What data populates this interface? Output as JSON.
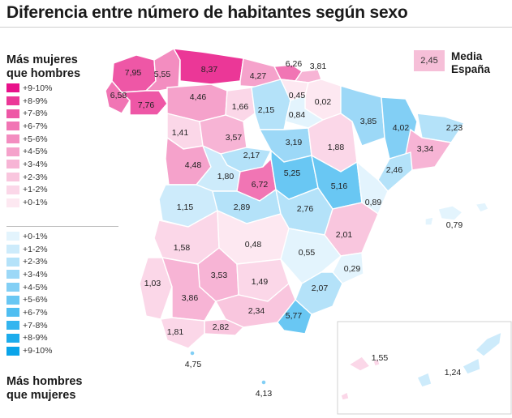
{
  "title": "Diferencia entre número de habitantes según sexo",
  "legend_women": {
    "heading_line1": "Más mujeres",
    "heading_line2": "que hombres",
    "items": [
      {
        "label": "+9-10%",
        "color": "#e8118a"
      },
      {
        "label": "+8-9%",
        "color": "#eb3797"
      },
      {
        "label": "+7-8%",
        "color": "#ee57a6"
      },
      {
        "label": "+6-7%",
        "color": "#f175b4"
      },
      {
        "label": "+5-6%",
        "color": "#f38dc0"
      },
      {
        "label": "+4-5%",
        "color": "#f5a2cb"
      },
      {
        "label": "+3-4%",
        "color": "#f7b4d5"
      },
      {
        "label": "+2-3%",
        "color": "#f9c6de"
      },
      {
        "label": "+1-2%",
        "color": "#fbd7e8"
      },
      {
        "label": "+0-1%",
        "color": "#fde8f1"
      }
    ]
  },
  "legend_men": {
    "heading_line1": "Más hombres",
    "heading_line2": "que mujeres",
    "items": [
      {
        "label": "+0-1%",
        "color": "#e3f4fd"
      },
      {
        "label": "+1-2%",
        "color": "#cdebfb"
      },
      {
        "label": "+2-3%",
        "color": "#b4e2f9"
      },
      {
        "label": "+3-4%",
        "color": "#9cd8f7"
      },
      {
        "label": "+4-5%",
        "color": "#82cff5"
      },
      {
        "label": "+5-6%",
        "color": "#69c7f3"
      },
      {
        "label": "+6-7%",
        "color": "#4fbef1"
      },
      {
        "label": "+7-8%",
        "color": "#33b5ef"
      },
      {
        "label": "+8-9%",
        "color": "#1dacec"
      },
      {
        "label": "+9-10%",
        "color": "#0aa4e9"
      }
    ]
  },
  "average": {
    "value": "2,45",
    "label_line1": "Media",
    "label_line2": "España",
    "color": "#f6bfd8"
  },
  "provinces": [
    {
      "name": "A Coruña",
      "value": "7,95",
      "sign": "women"
    },
    {
      "name": "Lugo",
      "value": "5,55",
      "sign": "women"
    },
    {
      "name": "Asturias",
      "value": "8,37",
      "sign": "women"
    },
    {
      "name": "Cantabria",
      "value": "4,27",
      "sign": "women"
    },
    {
      "name": "Bizkaia",
      "value": "6,26",
      "sign": "women"
    },
    {
      "name": "Gipuzkoa",
      "value": "3,81",
      "sign": "women"
    },
    {
      "name": "Pontevedra",
      "value": "6,58",
      "sign": "women"
    },
    {
      "name": "Ourense",
      "value": "7,76",
      "sign": "women"
    },
    {
      "name": "León",
      "value": "4,46",
      "sign": "women"
    },
    {
      "name": "Palencia",
      "value": "1,66",
      "sign": "women"
    },
    {
      "name": "Burgos",
      "value": "2,15",
      "sign": "men"
    },
    {
      "name": "Álava",
      "value": "0,45",
      "sign": "women"
    },
    {
      "name": "Navarra",
      "value": "0,02",
      "sign": "women"
    },
    {
      "name": "La Rioja",
      "value": "0,84",
      "sign": "men"
    },
    {
      "name": "Zamora",
      "value": "1,41",
      "sign": "women"
    },
    {
      "name": "Valladolid",
      "value": "3,57",
      "sign": "women"
    },
    {
      "name": "Soria",
      "value": "3,19",
      "sign": "men"
    },
    {
      "name": "Zaragoza",
      "value": "1,88",
      "sign": "women"
    },
    {
      "name": "Huesca",
      "value": "3,85",
      "sign": "men"
    },
    {
      "name": "Lleida",
      "value": "4,02",
      "sign": "men"
    },
    {
      "name": "Girona",
      "value": "2,23",
      "sign": "men"
    },
    {
      "name": "Barcelona",
      "value": "3,34",
      "sign": "women"
    },
    {
      "name": "Tarragona",
      "value": "2,46",
      "sign": "men"
    },
    {
      "name": "Segovia",
      "value": "2,17",
      "sign": "men"
    },
    {
      "name": "Salamanca",
      "value": "4,48",
      "sign": "women"
    },
    {
      "name": "Ávila",
      "value": "1,80",
      "sign": "men"
    },
    {
      "name": "Madrid",
      "value": "6,72",
      "sign": "women"
    },
    {
      "name": "Guadalajara",
      "value": "5,25",
      "sign": "men"
    },
    {
      "name": "Teruel",
      "value": "5,16",
      "sign": "men"
    },
    {
      "name": "Castellón",
      "value": "0,89",
      "sign": "men"
    },
    {
      "name": "Cáceres",
      "value": "1,15",
      "sign": "men"
    },
    {
      "name": "Toledo",
      "value": "2,89",
      "sign": "men"
    },
    {
      "name": "Cuenca",
      "value": "2,76",
      "sign": "men"
    },
    {
      "name": "Valencia",
      "value": "2,01",
      "sign": "women"
    },
    {
      "name": "Illes Balears",
      "value": "0,79",
      "sign": "men"
    },
    {
      "name": "Badajoz",
      "value": "1,58",
      "sign": "women"
    },
    {
      "name": "Ciudad Real",
      "value": "0,48",
      "sign": "women"
    },
    {
      "name": "Albacete",
      "value": "0,55",
      "sign": "men"
    },
    {
      "name": "Alicante",
      "value": "0,29",
      "sign": "men"
    },
    {
      "name": "Huelva",
      "value": "1,03",
      "sign": "women"
    },
    {
      "name": "Córdoba",
      "value": "3,53",
      "sign": "women"
    },
    {
      "name": "Jaén",
      "value": "1,49",
      "sign": "women"
    },
    {
      "name": "Murcia",
      "value": "2,07",
      "sign": "men"
    },
    {
      "name": "Sevilla",
      "value": "3,86",
      "sign": "women"
    },
    {
      "name": "Granada",
      "value": "2,34",
      "sign": "women"
    },
    {
      "name": "Almería",
      "value": "5,77",
      "sign": "men"
    },
    {
      "name": "Málaga",
      "value": "2,82",
      "sign": "women"
    },
    {
      "name": "Cádiz",
      "value": "1,81",
      "sign": "women"
    },
    {
      "name": "Ceuta",
      "value": "4,75",
      "sign": "men"
    },
    {
      "name": "Melilla",
      "value": "4,13",
      "sign": "men"
    },
    {
      "name": "Santa Cruz de Tenerife",
      "value": "1,55",
      "sign": "women"
    },
    {
      "name": "Las Palmas",
      "value": "1,24",
      "sign": "men"
    }
  ]
}
